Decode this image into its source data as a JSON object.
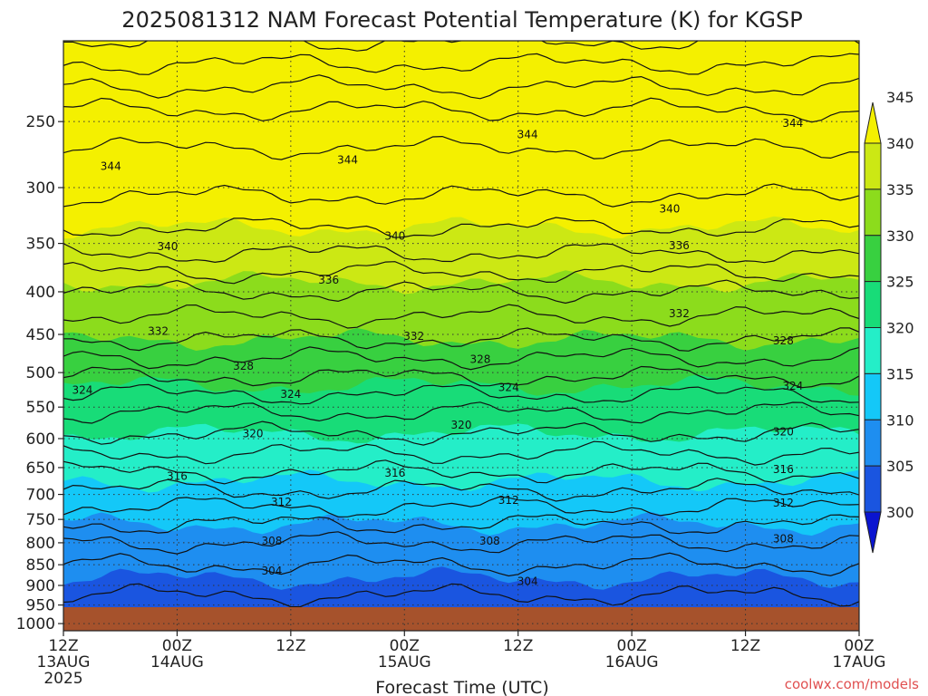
{
  "chart_data": {
    "type": "heatmap",
    "title": "2025081312 NAM Forecast Potential Temperature (K) for KGSP",
    "xlabel": "Forecast Time (UTC)",
    "ylabel": "",
    "x_ticks": [
      {
        "hours": 0,
        "line1": "12Z",
        "line2": "13AUG",
        "line3": "2025"
      },
      {
        "hours": 12,
        "line1": "00Z",
        "line2": "14AUG",
        "line3": ""
      },
      {
        "hours": 24,
        "line1": "12Z",
        "line2": "",
        "line3": ""
      },
      {
        "hours": 36,
        "line1": "00Z",
        "line2": "15AUG",
        "line3": ""
      },
      {
        "hours": 48,
        "line1": "12Z",
        "line2": "",
        "line3": ""
      },
      {
        "hours": 60,
        "line1": "00Z",
        "line2": "16AUG",
        "line3": ""
      },
      {
        "hours": 72,
        "line1": "12Z",
        "line2": "",
        "line3": ""
      },
      {
        "hours": 84,
        "line1": "00Z",
        "line2": "17AUG",
        "line3": ""
      }
    ],
    "xlim": [
      0,
      84
    ],
    "y_ticks": [
      250,
      300,
      350,
      400,
      450,
      500,
      550,
      600,
      650,
      700,
      750,
      800,
      850,
      900,
      950,
      1000
    ],
    "ylim": [
      200,
      1020
    ],
    "y_scale": "log",
    "grid": true,
    "colorbar": {
      "levels": [
        300,
        305,
        310,
        315,
        320,
        325,
        330,
        335,
        340,
        345
      ],
      "colors": [
        "#0a14d0",
        "#1a55e0",
        "#1e8ef0",
        "#14c8f8",
        "#24eec8",
        "#18dc78",
        "#38d040",
        "#8cdc1c",
        "#cce814",
        "#f4f000"
      ]
    },
    "ground_color": "#a6522c",
    "profile": [
      {
        "p": 200,
        "theta": 352
      },
      {
        "p": 250,
        "theta": 345
      },
      {
        "p": 300,
        "theta": 342.5
      },
      {
        "p": 350,
        "theta": 339
      },
      {
        "p": 400,
        "theta": 334
      },
      {
        "p": 450,
        "theta": 330.5
      },
      {
        "p": 500,
        "theta": 326.5
      },
      {
        "p": 550,
        "theta": 322.5
      },
      {
        "p": 600,
        "theta": 319.5
      },
      {
        "p": 650,
        "theta": 316.5
      },
      {
        "p": 700,
        "theta": 313.5
      },
      {
        "p": 750,
        "theta": 310.5
      },
      {
        "p": 800,
        "theta": 308
      },
      {
        "p": 850,
        "theta": 306
      },
      {
        "p": 900,
        "theta": 304.5
      },
      {
        "p": 950,
        "theta": 303.5
      },
      {
        "p": 990,
        "theta": 303
      }
    ],
    "contour_labels": [
      {
        "value": "344",
        "hours": 5,
        "p": 283
      },
      {
        "value": "344",
        "hours": 30,
        "p": 278
      },
      {
        "value": "344",
        "hours": 49,
        "p": 259
      },
      {
        "value": "344",
        "hours": 77,
        "p": 251
      },
      {
        "value": "340",
        "hours": 11,
        "p": 353
      },
      {
        "value": "340",
        "hours": 35,
        "p": 343
      },
      {
        "value": "340",
        "hours": 64,
        "p": 318
      },
      {
        "value": "336",
        "hours": 28,
        "p": 387
      },
      {
        "value": "336",
        "hours": 65,
        "p": 352
      },
      {
        "value": "332",
        "hours": 10,
        "p": 446
      },
      {
        "value": "332",
        "hours": 37,
        "p": 452
      },
      {
        "value": "332",
        "hours": 65,
        "p": 425
      },
      {
        "value": "328",
        "hours": 19,
        "p": 491
      },
      {
        "value": "328",
        "hours": 44,
        "p": 482
      },
      {
        "value": "328",
        "hours": 76,
        "p": 458
      },
      {
        "value": "324",
        "hours": 2,
        "p": 525
      },
      {
        "value": "324",
        "hours": 24,
        "p": 531
      },
      {
        "value": "324",
        "hours": 47,
        "p": 521
      },
      {
        "value": "324",
        "hours": 77,
        "p": 519
      },
      {
        "value": "320",
        "hours": 20,
        "p": 592
      },
      {
        "value": "320",
        "hours": 42,
        "p": 578
      },
      {
        "value": "320",
        "hours": 76,
        "p": 589
      },
      {
        "value": "316",
        "hours": 12,
        "p": 666
      },
      {
        "value": "316",
        "hours": 35,
        "p": 660
      },
      {
        "value": "316",
        "hours": 76,
        "p": 653
      },
      {
        "value": "312",
        "hours": 23,
        "p": 715
      },
      {
        "value": "312",
        "hours": 47,
        "p": 711
      },
      {
        "value": "312",
        "hours": 76,
        "p": 717
      },
      {
        "value": "308",
        "hours": 22,
        "p": 796
      },
      {
        "value": "308",
        "hours": 45,
        "p": 796
      },
      {
        "value": "308",
        "hours": 76,
        "p": 791
      },
      {
        "value": "304",
        "hours": 22,
        "p": 865
      },
      {
        "value": "304",
        "hours": 49,
        "p": 890
      }
    ],
    "credit": "coolwx.com/models"
  }
}
